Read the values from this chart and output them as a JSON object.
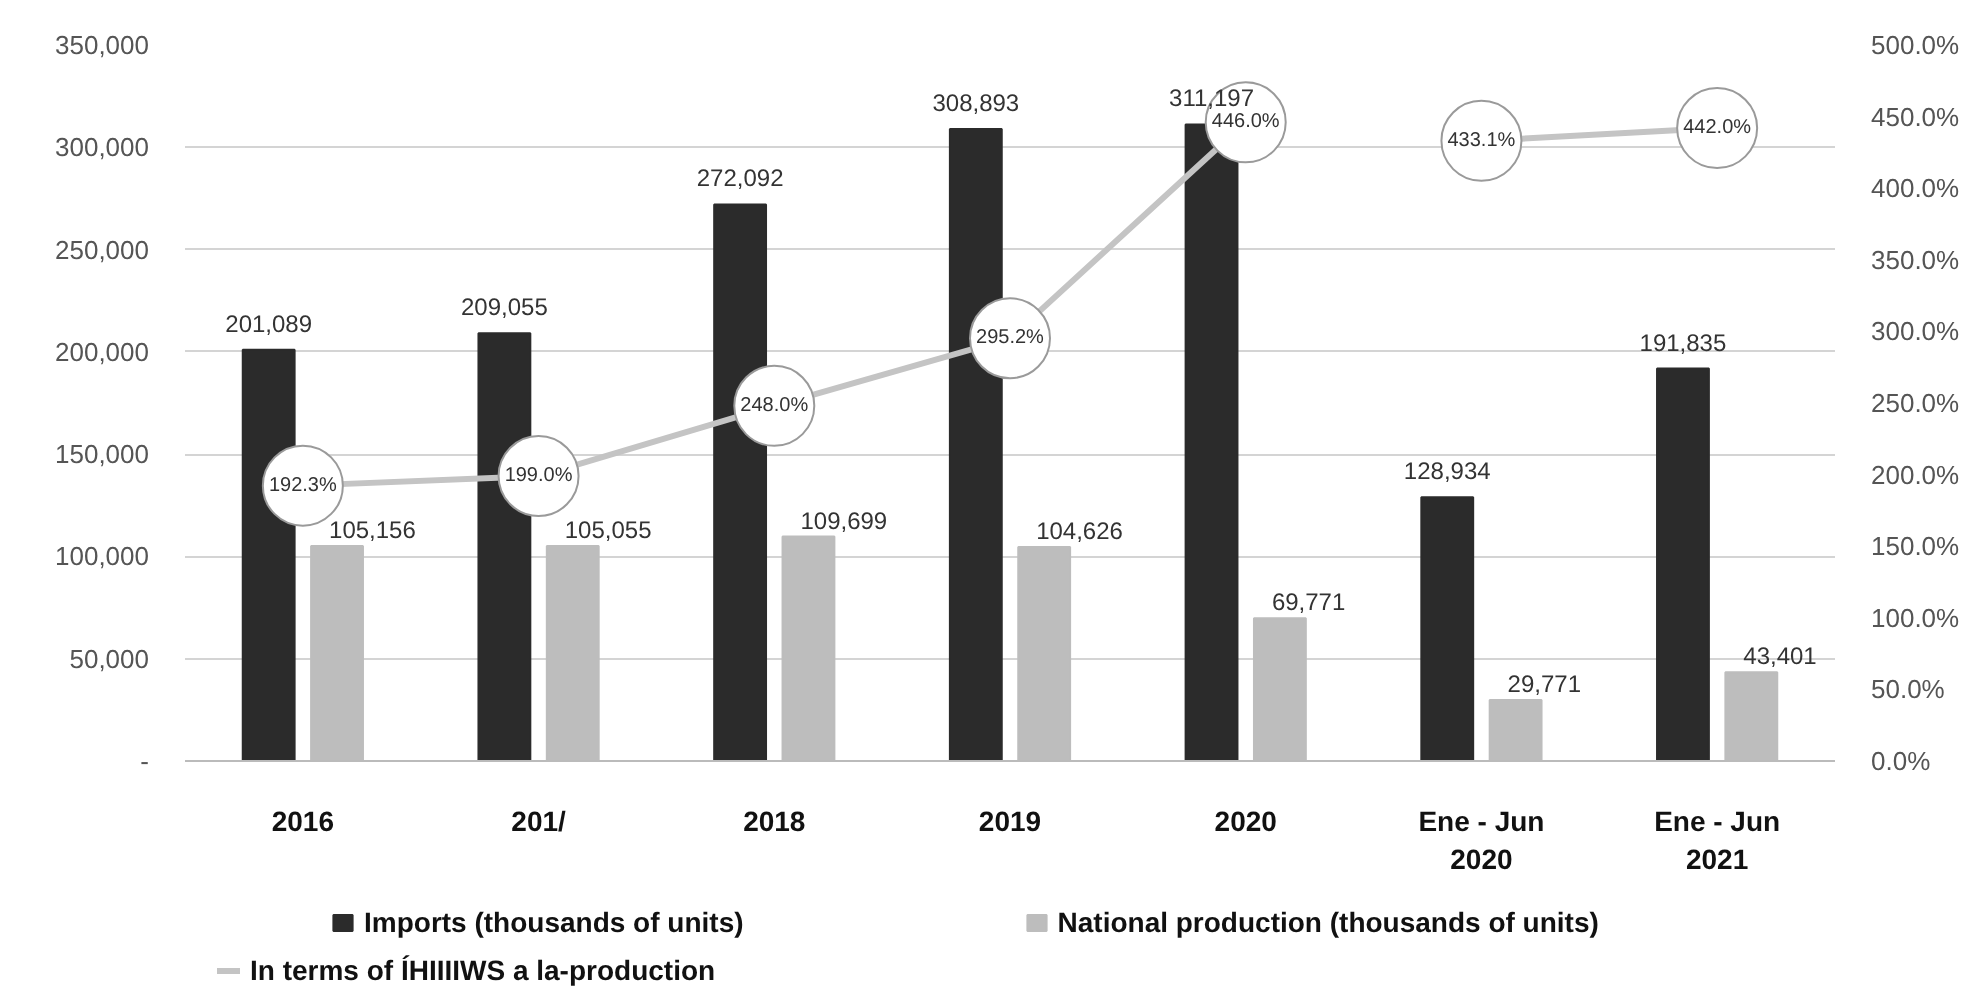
{
  "chart_data": {
    "type": "bar",
    "categories": [
      "2016",
      "201/",
      "2018",
      "2019",
      "2020",
      "Ene - Jun\n2020",
      "Ene - Jun\n2021"
    ],
    "ylim": [
      0,
      350000
    ],
    "yticks": [
      {
        "value": 0,
        "label": "-"
      },
      {
        "value": 50000,
        "label": "50,000"
      },
      {
        "value": 100000,
        "label": "100,000"
      },
      {
        "value": 150000,
        "label": "150,000"
      },
      {
        "value": 200000,
        "label": "200,000"
      },
      {
        "value": 250000,
        "label": "250,000"
      },
      {
        "value": 300000,
        "label": "300,000"
      },
      {
        "value": 350000,
        "label": "350,000"
      }
    ],
    "y2lim": [
      0,
      500
    ],
    "y2ticks": [
      {
        "value": 0,
        "label": "0.0%"
      },
      {
        "value": 50,
        "label": "50.0%"
      },
      {
        "value": 100,
        "label": "100.0%"
      },
      {
        "value": 150,
        "label": "150.0%"
      },
      {
        "value": 200,
        "label": "200.0%"
      },
      {
        "value": 250,
        "label": "250.0%"
      },
      {
        "value": 300,
        "label": "300.0%"
      },
      {
        "value": 350,
        "label": "350.0%"
      },
      {
        "value": 400,
        "label": "400.0%"
      },
      {
        "value": 450,
        "label": "450.0%"
      },
      {
        "value": 500,
        "label": "500.0%"
      }
    ],
    "grid": "y",
    "legend": "bottom",
    "marker": "circle",
    "series": [
      {
        "name": "Imports (thousands of units)",
        "color": "#2b2b2b",
        "values": [
          201089,
          209055,
          272092,
          308893,
          311197,
          128934,
          191835
        ],
        "value_labels": [
          "201,089",
          "209,055",
          "272,092",
          "308,893",
          "311,197",
          "128,934",
          "191,835"
        ]
      },
      {
        "name": "National production (thousands of units)",
        "color": "#bdbdbd",
        "values": [
          105156,
          105055,
          109699,
          104626,
          69771,
          29771,
          43401
        ],
        "value_labels": [
          "105,156",
          "105,055",
          "109,699",
          "104,626",
          "69,771",
          "29,771",
          "43,401"
        ]
      },
      {
        "name": "In terms of ÍHIIIIWS a la-production",
        "type": "line",
        "axis": "y2",
        "color": "#c4c4c4",
        "values": [
          192.3,
          199.0,
          248.0,
          295.2,
          446.0,
          null,
          null
        ],
        "value_labels": [
          "192.3%",
          "199.0%",
          "248.0%",
          "295.2%",
          "446.0%",
          null,
          null
        ]
      },
      {
        "type": "line",
        "axis": "y2",
        "color": "#c4c4c4",
        "values": [
          null,
          null,
          null,
          null,
          null,
          433.1,
          442.0
        ],
        "value_labels": [
          null,
          null,
          null,
          null,
          null,
          "433.1%",
          "442.0%"
        ]
      }
    ]
  }
}
